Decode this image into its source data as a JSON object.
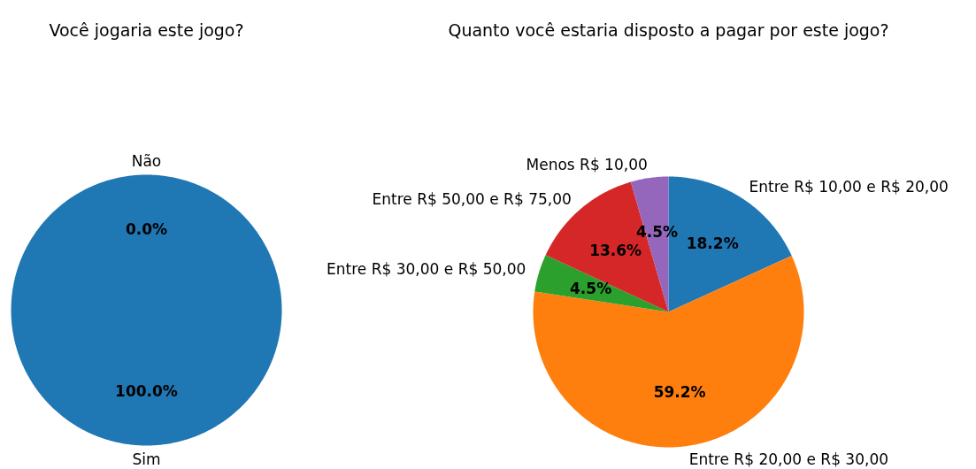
{
  "chart_data": [
    {
      "type": "pie",
      "title": "Você jogaria este jogo?",
      "categories": [
        "Sim",
        "Não"
      ],
      "values": [
        100,
        0
      ],
      "colors": [
        "#1f77b4",
        "#ff7f0e"
      ],
      "value_labels": [
        "100.0%",
        "0.0%"
      ]
    },
    {
      "type": "pie",
      "title": "Quanto você estaria disposto a pagar por este jogo?",
      "categories": [
        "Entre R$ 10,00 e R$ 20,00",
        "Entre R$ 20,00 e R$ 30,00",
        "Entre R$ 30,00 e R$ 50,00",
        "Entre R$ 50,00 e R$ 75,00",
        "Menos R$ 10,00"
      ],
      "values": [
        18.2,
        59.2,
        4.5,
        13.6,
        4.5
      ],
      "colors": [
        "#1f77b4",
        "#ff7f0e",
        "#2ca02c",
        "#d62728",
        "#9467bd"
      ],
      "value_labels": [
        "18.2%",
        "59.2%",
        "4.5%",
        "13.6%",
        "4.5%"
      ]
    }
  ]
}
